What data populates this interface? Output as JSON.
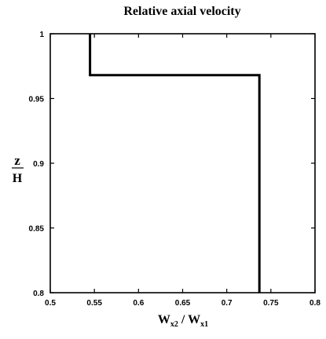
{
  "chart_data": {
    "type": "line",
    "title": "Relative axial velocity",
    "xlabel": {
      "base1": "W",
      "sub1": "x2",
      "separator": " / ",
      "base2": "W",
      "sub2": "x1"
    },
    "ylabel": {
      "numerator": "z",
      "denominator": "H"
    },
    "xlim": [
      0.5,
      0.8
    ],
    "ylim": [
      0.8,
      1.0
    ],
    "x_ticks": [
      "0.5",
      "0.55",
      "0.6",
      "0.65",
      "0.7",
      "0.75",
      "0.8"
    ],
    "y_ticks": [
      "0.8",
      "0.85",
      "0.9",
      "0.95",
      "1"
    ],
    "grid": false,
    "series": [
      {
        "points": [
          {
            "x": 0.545,
            "y": 1.0
          },
          {
            "x": 0.545,
            "y": 0.968
          },
          {
            "x": 0.737,
            "y": 0.968
          },
          {
            "x": 0.737,
            "y": 0.8
          }
        ]
      }
    ]
  }
}
